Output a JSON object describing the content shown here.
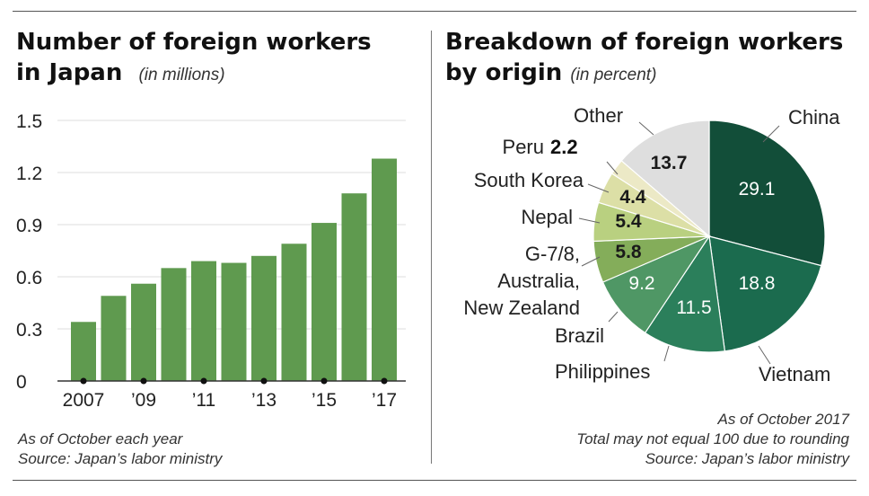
{
  "left_panel": {
    "title_line1": "Number of foreign workers",
    "title_line2": "in Japan",
    "unit": "(in millions)",
    "notes": [
      "As of October each year",
      "Source: Japan’s labor ministry"
    ]
  },
  "right_panel": {
    "title_line1": "Breakdown of foreign workers",
    "title_line2": "by origin",
    "unit": "(in percent)",
    "notes": [
      "As of October 2017",
      "Total may not equal 100 due to rounding",
      "Source: Japan’s labor ministry"
    ]
  },
  "colors": {
    "bar": "#5f9a4f",
    "axis": "#333333",
    "grid": "#dcdcdc"
  },
  "chart_data": [
    {
      "type": "bar",
      "title": "Number of foreign workers in Japan",
      "ylabel": "(in millions)",
      "categories": [
        "2007",
        "2008",
        "2009",
        "2010",
        "2011",
        "2012",
        "2013",
        "2014",
        "2015",
        "2016",
        "2017"
      ],
      "x_tick_labels": [
        "2007",
        "’09",
        "’11",
        "’13",
        "’15",
        "’17"
      ],
      "y_ticks": [
        "0",
        "0.3",
        "0.6",
        "0.9",
        "1.2",
        "1.5"
      ],
      "values": [
        0.34,
        0.49,
        0.56,
        0.65,
        0.69,
        0.68,
        0.72,
        0.79,
        0.91,
        1.08,
        1.28
      ],
      "ylim": [
        0,
        1.5
      ],
      "grid": true
    },
    {
      "type": "pie",
      "title": "Breakdown of foreign workers by origin",
      "slices": [
        {
          "label": "China",
          "value": 29.1,
          "value_label": "29.1",
          "color": "#124e39",
          "text_color": "#ffffff",
          "bold": false
        },
        {
          "label": "Vietnam",
          "value": 18.8,
          "value_label": "18.8",
          "color": "#1b6b4e",
          "text_color": "#ffffff",
          "bold": false
        },
        {
          "label": "Philippines",
          "value": 11.5,
          "value_label": "11.5",
          "color": "#2b7f5b",
          "text_color": "#ffffff",
          "bold": false
        },
        {
          "label": "Brazil",
          "value": 9.2,
          "value_label": "9.2",
          "color": "#4f9765",
          "text_color": "#ffffff",
          "bold": false
        },
        {
          "label": "G-7/8, Australia, New Zealand",
          "value": 5.8,
          "value_label": "5.8",
          "color": "#84ad5a",
          "text_color": "#1a1a1a",
          "bold": true
        },
        {
          "label": "Nepal",
          "value": 5.4,
          "value_label": "5.4",
          "color": "#b9d080",
          "text_color": "#1a1a1a",
          "bold": true
        },
        {
          "label": "South Korea",
          "value": 4.4,
          "value_label": "4.4",
          "color": "#dcdfa6",
          "text_color": "#1a1a1a",
          "bold": true
        },
        {
          "label": "Peru",
          "value": 2.2,
          "value_label": "2.2",
          "color": "#ece9c6",
          "text_color": "#1a1a1a",
          "bold": true
        },
        {
          "label": "Other",
          "value": 13.7,
          "value_label": "13.7",
          "color": "#dedede",
          "text_color": "#1a1a1a",
          "bold": true
        }
      ],
      "label_lines": {
        "china": "China",
        "vietnam": "Vietnam",
        "philippines": "Philippines",
        "brazil": "Brazil",
        "g7": [
          "G-7/8,",
          "Australia,",
          "New Zealand"
        ],
        "nepal": "Nepal",
        "south_korea": "South Korea",
        "peru": "Peru",
        "peru_value": "2.2",
        "other": "Other"
      }
    }
  ]
}
